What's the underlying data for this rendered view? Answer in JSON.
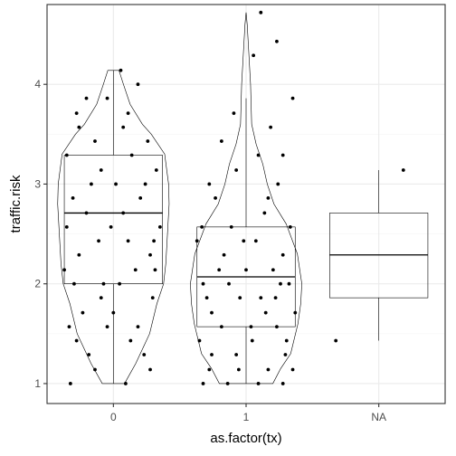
{
  "chart_data": {
    "type": "boxplot-violin-jitter",
    "xlabel": "as.factor(tx)",
    "ylabel": "traffic.risk",
    "categories": [
      "0",
      "1",
      "NA"
    ],
    "ylim": [
      0.8,
      4.8
    ],
    "yticks": [
      1,
      2,
      3,
      4
    ],
    "grid": true,
    "theme": "bw",
    "colors": {
      "panel_border": "#333333",
      "grid_major": "#ebebeb",
      "grid_minor": "#f5f5f5",
      "line": "#000000",
      "point": "#000000"
    },
    "boxes": [
      {
        "category": "0",
        "min": 1.0,
        "q1": 2.0,
        "median": 2.71,
        "q3": 3.29,
        "max": 4.14
      },
      {
        "category": "1",
        "min": 1.0,
        "q1": 1.57,
        "median": 2.07,
        "q3": 2.57,
        "max": 3.86
      },
      {
        "category": "NA",
        "min": 1.43,
        "q1": 1.86,
        "median": 2.29,
        "q3": 2.71,
        "max": 3.14
      }
    ],
    "violins": [
      {
        "category": "0",
        "density": [
          [
            1.0,
            0.2
          ],
          [
            1.2,
            0.4
          ],
          [
            1.5,
            0.65
          ],
          [
            1.8,
            0.78
          ],
          [
            2.0,
            0.9
          ],
          [
            2.2,
            0.94
          ],
          [
            2.5,
            0.97
          ],
          [
            2.8,
            1.0
          ],
          [
            3.0,
            0.99
          ],
          [
            3.3,
            0.92
          ],
          [
            3.5,
            0.68
          ],
          [
            3.6,
            0.52
          ],
          [
            3.8,
            0.3
          ],
          [
            4.0,
            0.18
          ],
          [
            4.14,
            0.1
          ]
        ]
      },
      {
        "category": "1",
        "density": [
          [
            1.0,
            0.48
          ],
          [
            1.15,
            0.62
          ],
          [
            1.3,
            0.8
          ],
          [
            1.6,
            0.93
          ],
          [
            1.8,
            0.98
          ],
          [
            2.0,
            1.0
          ],
          [
            2.3,
            0.92
          ],
          [
            2.6,
            0.72
          ],
          [
            2.8,
            0.5
          ],
          [
            3.0,
            0.38
          ],
          [
            3.2,
            0.3
          ],
          [
            3.4,
            0.18
          ],
          [
            3.6,
            0.1
          ],
          [
            3.8,
            0.09
          ],
          [
            4.0,
            0.08
          ],
          [
            4.2,
            0.06
          ],
          [
            4.4,
            0.04
          ],
          [
            4.6,
            0.02
          ],
          [
            4.72,
            0.0
          ]
        ]
      }
    ],
    "points": {
      "0": [
        [
          -0.35,
          1.0
        ],
        [
          -0.15,
          1.14
        ],
        [
          0.1,
          1.0
        ],
        [
          0.3,
          1.14
        ],
        [
          -0.3,
          1.43
        ],
        [
          -0.2,
          1.29
        ],
        [
          0.25,
          1.29
        ],
        [
          -0.05,
          1.57
        ],
        [
          0.2,
          1.57
        ],
        [
          -0.25,
          1.71
        ],
        [
          0.0,
          1.71
        ],
        [
          0.32,
          1.86
        ],
        [
          -0.1,
          1.86
        ],
        [
          0.05,
          2.0
        ],
        [
          -0.32,
          2.0
        ],
        [
          0.18,
          2.14
        ],
        [
          -0.4,
          2.14
        ],
        [
          0.3,
          2.29
        ],
        [
          -0.28,
          2.29
        ],
        [
          0.12,
          2.43
        ],
        [
          -0.12,
          2.43
        ],
        [
          0.38,
          2.57
        ],
        [
          -0.38,
          2.57
        ],
        [
          0.08,
          2.71
        ],
        [
          -0.22,
          2.71
        ],
        [
          0.22,
          2.86
        ],
        [
          -0.33,
          2.86
        ],
        [
          0.02,
          3.0
        ],
        [
          -0.18,
          3.0
        ],
        [
          0.35,
          3.14
        ],
        [
          -0.1,
          3.14
        ],
        [
          0.15,
          3.29
        ],
        [
          -0.38,
          3.29
        ],
        [
          0.28,
          3.43
        ],
        [
          -0.15,
          3.43
        ],
        [
          0.08,
          3.57
        ],
        [
          -0.28,
          3.57
        ],
        [
          0.12,
          3.71
        ],
        [
          -0.05,
          3.86
        ],
        [
          0.2,
          4.0
        ],
        [
          -0.3,
          3.71
        ],
        [
          0.26,
          3.0
        ],
        [
          -0.02,
          2.57
        ],
        [
          0.33,
          2.43
        ],
        [
          -0.36,
          1.57
        ],
        [
          0.14,
          1.43
        ],
        [
          -0.08,
          2.0
        ],
        [
          0.06,
          4.14
        ],
        [
          -0.22,
          3.86
        ],
        [
          0.34,
          2.14
        ]
      ],
      "1": [
        [
          -0.35,
          1.0
        ],
        [
          -0.15,
          1.0
        ],
        [
          0.1,
          1.0
        ],
        [
          0.3,
          1.0
        ],
        [
          -0.3,
          1.14
        ],
        [
          0.18,
          1.14
        ],
        [
          -0.08,
          1.29
        ],
        [
          0.32,
          1.29
        ],
        [
          -0.38,
          1.43
        ],
        [
          0.05,
          1.43
        ],
        [
          0.25,
          1.57
        ],
        [
          -0.2,
          1.57
        ],
        [
          0.4,
          1.71
        ],
        [
          -0.28,
          1.71
        ],
        [
          0.12,
          1.86
        ],
        [
          -0.05,
          1.86
        ],
        [
          0.35,
          2.0
        ],
        [
          -0.35,
          2.0
        ],
        [
          0.0,
          2.14
        ],
        [
          0.22,
          2.14
        ],
        [
          -0.18,
          2.29
        ],
        [
          0.3,
          2.29
        ],
        [
          -0.4,
          2.43
        ],
        [
          0.08,
          2.43
        ],
        [
          0.36,
          2.57
        ],
        [
          -0.12,
          2.57
        ],
        [
          0.15,
          2.71
        ],
        [
          -0.25,
          2.86
        ],
        [
          0.26,
          3.0
        ],
        [
          -0.08,
          3.14
        ],
        [
          0.3,
          3.29
        ],
        [
          -0.2,
          3.43
        ],
        [
          0.2,
          3.57
        ],
        [
          -0.1,
          3.71
        ],
        [
          0.06,
          4.29
        ],
        [
          0.12,
          4.72
        ],
        [
          0.25,
          4.43
        ],
        [
          0.38,
          3.86
        ],
        [
          -0.28,
          1.29
        ],
        [
          0.16,
          1.71
        ],
        [
          -0.32,
          1.86
        ],
        [
          0.28,
          2.0
        ],
        [
          -0.02,
          2.43
        ],
        [
          0.33,
          1.43
        ],
        [
          -0.14,
          2.0
        ],
        [
          0.18,
          2.86
        ],
        [
          -0.36,
          2.57
        ],
        [
          0.04,
          1.57
        ],
        [
          0.24,
          1.86
        ],
        [
          -0.22,
          2.14
        ],
        [
          0.1,
          3.29
        ],
        [
          -0.3,
          3.0
        ],
        [
          0.38,
          1.14
        ],
        [
          -0.06,
          1.14
        ]
      ],
      "NA": [
        [
          -0.35,
          1.43
        ],
        [
          0.2,
          3.14
        ]
      ]
    }
  }
}
